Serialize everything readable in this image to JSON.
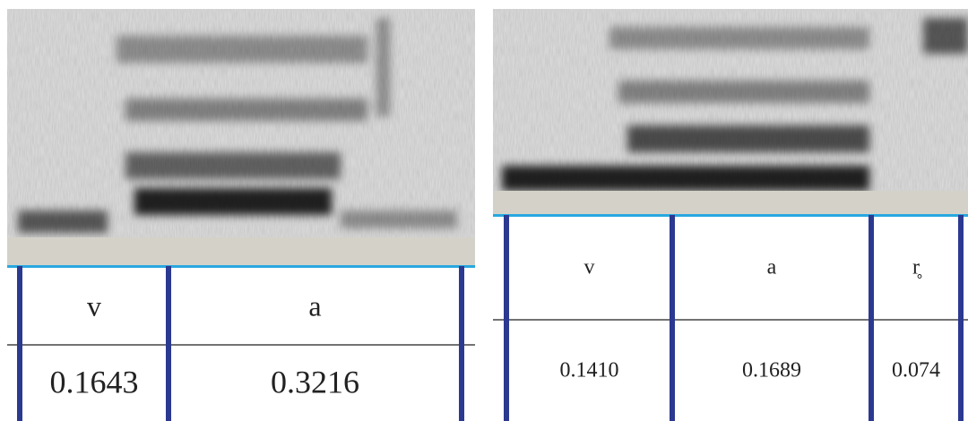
{
  "panels": [
    {
      "segments": [
        {
          "label": "v",
          "duration": "0.1643"
        },
        {
          "label": "a",
          "duration": "0.3216"
        }
      ]
    },
    {
      "segments": [
        {
          "label": "v",
          "duration": "0.1410"
        },
        {
          "label": "a",
          "duration": "0.1689"
        },
        {
          "label": "r̥",
          "duration": "0.074"
        }
      ]
    }
  ]
}
